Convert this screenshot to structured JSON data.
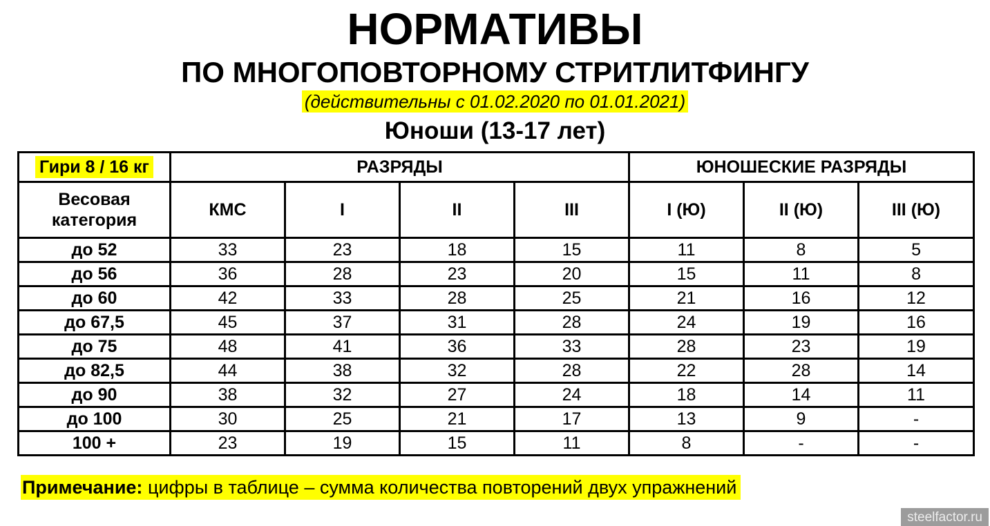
{
  "header": {
    "title": "НОРМАТИВЫ",
    "subtitle": "ПО МНОГОПОВТОРНОМУ СТРИТЛИТФИНГУ",
    "validity": "(действительны с 01.02.2020 по 01.01.2021)",
    "age_group": "Юноши (13-17 лет)"
  },
  "table": {
    "equipment_label": "Гири 8 / 16 кг",
    "ranks_header": "РАЗРЯДЫ",
    "youth_ranks_header": "ЮНОШЕСКИЕ РАЗРЯДЫ",
    "weight_category_header": "Весовая категория",
    "rank_columns": [
      "КМС",
      "I",
      "II",
      "III",
      "I (Ю)",
      "II (Ю)",
      "III (Ю)"
    ],
    "rows": [
      {
        "category": "до 52",
        "values": [
          "33",
          "23",
          "18",
          "15",
          "11",
          "8",
          "5"
        ]
      },
      {
        "category": "до 56",
        "values": [
          "36",
          "28",
          "23",
          "20",
          "15",
          "11",
          "8"
        ]
      },
      {
        "category": "до 60",
        "values": [
          "42",
          "33",
          "28",
          "25",
          "21",
          "16",
          "12"
        ]
      },
      {
        "category": "до 67,5",
        "values": [
          "45",
          "37",
          "31",
          "28",
          "24",
          "19",
          "16"
        ]
      },
      {
        "category": "до 75",
        "values": [
          "48",
          "41",
          "36",
          "33",
          "28",
          "23",
          "19"
        ]
      },
      {
        "category": "до 82,5",
        "values": [
          "44",
          "38",
          "32",
          "28",
          "22",
          "28",
          "14"
        ]
      },
      {
        "category": "до 90",
        "values": [
          "38",
          "32",
          "27",
          "24",
          "18",
          "14",
          "11"
        ]
      },
      {
        "category": "до 100",
        "values": [
          "30",
          "25",
          "21",
          "17",
          "13",
          "9",
          "-"
        ]
      },
      {
        "category": "100 +",
        "values": [
          "23",
          "19",
          "15",
          "11",
          "8",
          "-",
          "-"
        ]
      }
    ]
  },
  "note": {
    "label": "Примечание:",
    "text": "цифры в таблице – сумма количества повторений двух упражнений"
  },
  "watermark": "steelfactor.ru",
  "colors": {
    "highlight": "#ffff00",
    "border": "#000000",
    "watermark_bg": "#9c9c9c",
    "watermark_text": "#ececec"
  }
}
